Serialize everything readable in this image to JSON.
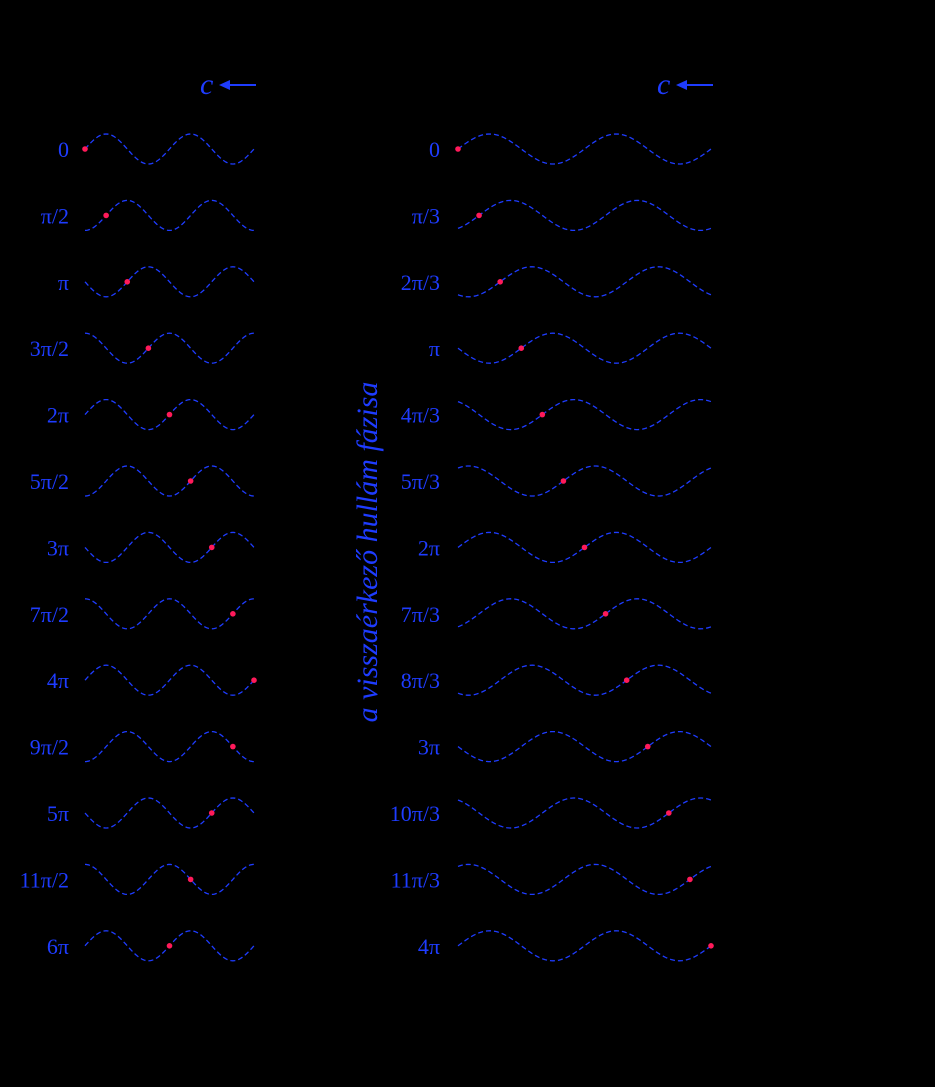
{
  "colors": {
    "background": "#000000",
    "label": "#1e3cff",
    "wave": "#1e3cff",
    "point": "#ff1a5a"
  },
  "vertical_label": "a visszaérkező hullám fázisa",
  "panels": [
    {
      "id": "left",
      "speed_label": "c",
      "direction": "left",
      "wave_periods_shown": 2,
      "phase_step_fraction_of_period": 0.25,
      "rows": [
        {
          "phase": "0"
        },
        {
          "phase": "π/2"
        },
        {
          "phase": "π"
        },
        {
          "phase": "3π/2"
        },
        {
          "phase": "2π"
        },
        {
          "phase": "5π/2"
        },
        {
          "phase": "3π"
        },
        {
          "phase": "7π/2"
        },
        {
          "phase": "4π"
        },
        {
          "phase": "9π/2"
        },
        {
          "phase": "5π"
        },
        {
          "phase": "11π/2"
        },
        {
          "phase": "6π"
        }
      ],
      "point_position_fraction": [
        0,
        0.125,
        0.25,
        0.375,
        0.5,
        0.625,
        0.75,
        0.875,
        1,
        0.875,
        0.75,
        0.625,
        0.5
      ]
    },
    {
      "id": "right",
      "speed_label": "c",
      "direction": "left",
      "wave_periods_shown": 2,
      "phase_step_fraction_of_period": 0.1667,
      "rows": [
        {
          "phase": "0"
        },
        {
          "phase": "π/3"
        },
        {
          "phase": "2π/3"
        },
        {
          "phase": "π"
        },
        {
          "phase": "4π/3"
        },
        {
          "phase": "5π/3"
        },
        {
          "phase": "2π"
        },
        {
          "phase": "7π/3"
        },
        {
          "phase": "8π/3"
        },
        {
          "phase": "3π"
        },
        {
          "phase": "10π/3"
        },
        {
          "phase": "11π/3"
        },
        {
          "phase": "4π"
        }
      ],
      "point_position_fraction": [
        0,
        0.0833,
        0.1667,
        0.25,
        0.3333,
        0.4167,
        0.5,
        0.5833,
        0.6667,
        0.75,
        0.8333,
        0.9167,
        1
      ]
    }
  ]
}
